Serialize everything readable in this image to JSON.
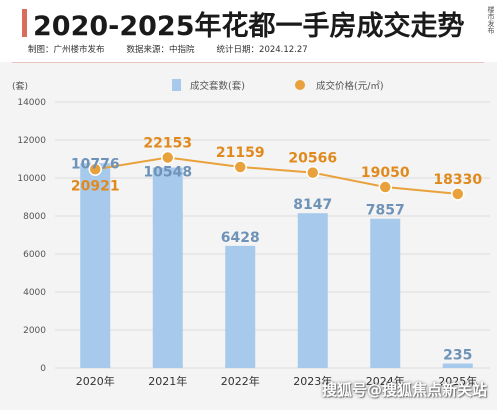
{
  "header": {
    "title": "2020-2025年花都一手房成交走势",
    "maker": "制图：广州楼市发布",
    "source": "数据来源：中指院",
    "date": "统计日期：2024.12.27",
    "side_mark": "楼市发布"
  },
  "watermark": "搜狐号@搜狐焦点新关站",
  "colors": {
    "bar": "#a7c9ec",
    "line": "#e9a23b",
    "bar_label": "#6f93b8",
    "line_label": "#e08a1e",
    "title_accent": "#d96d5c"
  },
  "chart_data": {
    "type": "bar",
    "categories": [
      "2020年",
      "2021年",
      "2022年",
      "2023年",
      "2024年",
      "2025年"
    ],
    "ylabel": "(套)",
    "ylim": [
      0,
      14000
    ],
    "yticks": [
      0,
      2000,
      4000,
      6000,
      8000,
      10000,
      12000,
      14000
    ],
    "grid": true,
    "legend_position": "top",
    "series": [
      {
        "name": "成交套数(套)",
        "type": "bar",
        "values": [
          10776,
          10548,
          6428,
          8147,
          7857,
          235
        ]
      },
      {
        "name": "成交价格(元/㎡)",
        "type": "line",
        "values": [
          20921,
          22153,
          21159,
          20566,
          19050,
          18330
        ]
      }
    ]
  }
}
